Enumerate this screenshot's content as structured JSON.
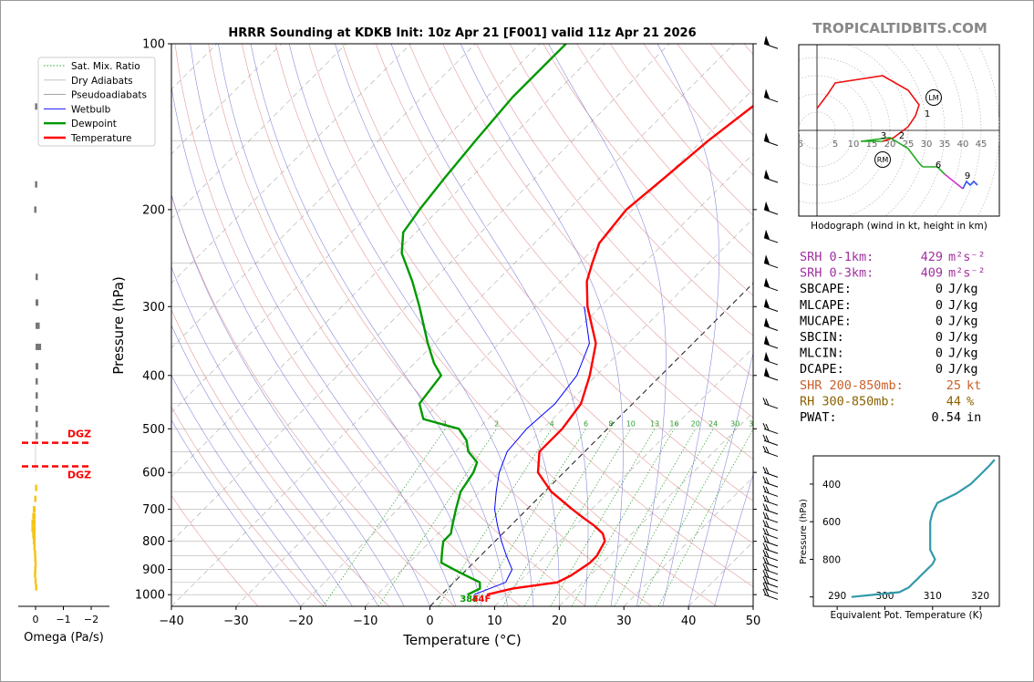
{
  "title": "HRRR Sounding at KDKB Init: 10z Apr 21 [F001] valid 11z Apr 21 2026",
  "brand": "TROPICALTIDBITS.COM",
  "main_plot": {
    "xlabel": "Temperature (°C)",
    "ylabel": "Pressure (hPa)",
    "x_ticks": [
      "−40",
      "−30",
      "−20",
      "−10",
      "0",
      "10",
      "20",
      "30",
      "40",
      "50"
    ],
    "y_ticks": [
      "100",
      "200",
      "300",
      "400",
      "500",
      "600",
      "700",
      "800",
      "900",
      "1000"
    ],
    "xlim": [
      -40,
      50
    ],
    "ylim": [
      1050,
      100
    ],
    "mixing_ratio_labels": [
      "1",
      "2",
      "4",
      "6",
      "8",
      "10",
      "13",
      "16",
      "20",
      "24",
      "30",
      "36"
    ],
    "surface_temp_label": "44F",
    "surface_dewpoint_label": "38F",
    "colors": {
      "temperature": "#ff0000",
      "dewpoint": "#009900",
      "wetbulb": "#0000ff",
      "dgz": "#ff0000"
    }
  },
  "legend": {
    "items": [
      {
        "label": "Sat. Mix. Ratio",
        "color": "#2ca02c",
        "style": "dotted"
      },
      {
        "label": "Dry Adiabats",
        "color": "#bbbbbb",
        "style": "solid"
      },
      {
        "label": "Pseudoadiabats",
        "color": "#999999",
        "style": "solid"
      },
      {
        "label": "Wetbulb",
        "color": "#0000ff",
        "style": "solid"
      },
      {
        "label": "Dewpoint",
        "color": "#009900",
        "style": "solid"
      },
      {
        "label": "Temperature",
        "color": "#ff0000",
        "style": "solid"
      }
    ]
  },
  "omega_panel": {
    "xlabel": "Omega (Pa/s)",
    "x_ticks": [
      "0",
      "−1",
      "−2"
    ],
    "dgz_top_label": "DGZ",
    "dgz_bottom_label": "DGZ"
  },
  "hodograph": {
    "caption": "Hodograph (wind in kt, height in km)",
    "ring_labels": [
      "5",
      "5",
      "10",
      "15",
      "20",
      "25",
      "30",
      "35",
      "40",
      "45"
    ],
    "height_labels": [
      "1",
      "2",
      "3",
      "6",
      "9"
    ],
    "storm_motion_labels": [
      "LM",
      "RM"
    ]
  },
  "indices": [
    {
      "label": "SRH 0-1km:",
      "value": "429",
      "unit": "m²s⁻²",
      "color": "#a0309f"
    },
    {
      "label": "SRH 0-3km:",
      "value": "409",
      "unit": "m²s⁻²",
      "color": "#a0309f"
    },
    {
      "label": "SBCAPE:",
      "value": "0",
      "unit": "J/kg",
      "color": "#000000"
    },
    {
      "label": "MLCAPE:",
      "value": "0",
      "unit": "J/kg",
      "color": "#000000"
    },
    {
      "label": "MUCAPE:",
      "value": "0",
      "unit": "J/kg",
      "color": "#000000"
    },
    {
      "label": "SBCIN:",
      "value": "0",
      "unit": "J/kg",
      "color": "#000000"
    },
    {
      "label": "MLCIN:",
      "value": "0",
      "unit": "J/kg",
      "color": "#000000"
    },
    {
      "label": "DCAPE:",
      "value": "0",
      "unit": "J/kg",
      "color": "#000000"
    },
    {
      "label": "SHR 200-850mb:",
      "value": "25",
      "unit": "kt",
      "color": "#c8602a"
    },
    {
      "label": "RH 300-850mb:",
      "value": "44",
      "unit": "%",
      "color": "#8a6200"
    },
    {
      "label": "PWAT:",
      "value": "0.54",
      "unit": "in",
      "color": "#000000"
    }
  ],
  "theta_e_panel": {
    "xlabel": "Equivalent Pot. Temperature (K)",
    "ylabel": "Pressure (hPa)",
    "x_ticks": [
      "290",
      "300",
      "310",
      "320"
    ],
    "y_ticks": [
      "400",
      "600",
      "800"
    ],
    "color": "#3399aa"
  },
  "chart_data": [
    {
      "type": "line",
      "title": "HRRR Sounding at KDKB Init: 10z Apr 21 [F001] valid 11z Apr 21 2026",
      "xlabel": "Temperature (°C)",
      "ylabel": "Pressure (hPa)",
      "xlim": [
        -40,
        50
      ],
      "ylim": [
        1050,
        100
      ],
      "y_scale": "log",
      "grid": true,
      "legend_position": "top-left",
      "series": [
        {
          "name": "Temperature",
          "points": [
            [
              1000,
              7
            ],
            [
              975,
              10
            ],
            [
              950,
              16
            ],
            [
              925,
              17
            ],
            [
              900,
              17.5
            ],
            [
              875,
              18
            ],
            [
              850,
              18
            ],
            [
              825,
              17.5
            ],
            [
              800,
              17
            ],
            [
              775,
              15.5
            ],
            [
              750,
              13
            ],
            [
              725,
              10
            ],
            [
              700,
              7
            ],
            [
              650,
              1
            ],
            [
              600,
              -4
            ],
            [
              550,
              -7
            ],
            [
              500,
              -7
            ],
            [
              450,
              -8
            ],
            [
              400,
              -11
            ],
            [
              350,
              -15
            ],
            [
              300,
              -22
            ],
            [
              270,
              -26
            ],
            [
              250,
              -28
            ],
            [
              230,
              -30
            ],
            [
              200,
              -31
            ],
            [
              175,
              -30
            ],
            [
              150,
              -29
            ],
            [
              125,
              -27
            ],
            [
              110,
              -25
            ],
            [
              100,
              -24
            ]
          ]
        },
        {
          "name": "Dewpoint",
          "points": [
            [
              1000,
              4
            ],
            [
              975,
              5
            ],
            [
              950,
              4
            ],
            [
              925,
              1
            ],
            [
              900,
              -2
            ],
            [
              875,
              -5
            ],
            [
              850,
              -6
            ],
            [
              825,
              -7
            ],
            [
              800,
              -8
            ],
            [
              775,
              -8
            ],
            [
              750,
              -9
            ],
            [
              700,
              -11
            ],
            [
              650,
              -13
            ],
            [
              600,
              -14
            ],
            [
              575,
              -15
            ],
            [
              550,
              -18
            ],
            [
              525,
              -20
            ],
            [
              500,
              -23
            ],
            [
              480,
              -30
            ],
            [
              450,
              -33
            ],
            [
              400,
              -34
            ],
            [
              380,
              -37
            ],
            [
              350,
              -41
            ],
            [
              300,
              -48
            ],
            [
              270,
              -53
            ],
            [
              240,
              -59
            ],
            [
              220,
              -62
            ],
            [
              200,
              -63
            ],
            [
              175,
              -64
            ],
            [
              150,
              -65
            ],
            [
              125,
              -66
            ],
            [
              100,
              -66
            ]
          ]
        },
        {
          "name": "Wetbulb",
          "points": [
            [
              1000,
              5
            ],
            [
              950,
              8
            ],
            [
              900,
              7
            ],
            [
              850,
              4
            ],
            [
              800,
              1
            ],
            [
              750,
              -2
            ],
            [
              700,
              -5
            ],
            [
              650,
              -7.5
            ],
            [
              600,
              -10
            ],
            [
              550,
              -12
            ],
            [
              500,
              -12.5
            ],
            [
              450,
              -12
            ],
            [
              400,
              -13
            ],
            [
              350,
              -16
            ],
            [
              300,
              -22.5
            ]
          ]
        }
      ]
    },
    {
      "type": "bar",
      "title": "",
      "xlabel": "Omega (Pa/s)",
      "xlim": [
        0.5,
        -2
      ],
      "orientation": "horizontal",
      "series": [
        {
          "name": "Omega (upper)",
          "color": "#777777",
          "points": [
            [
              130,
              0.02
            ],
            [
              180,
              0.02
            ],
            [
              200,
              0.05
            ],
            [
              265,
              -0.05
            ],
            [
              295,
              -0.1
            ],
            [
              325,
              -0.15
            ],
            [
              355,
              -0.2
            ],
            [
              385,
              -0.1
            ],
            [
              410,
              -0.08
            ],
            [
              435,
              -0.06
            ],
            [
              460,
              -0.05
            ],
            [
              490,
              -0.03
            ],
            [
              515,
              -0.02
            ]
          ]
        },
        {
          "name": "Omega (lower)",
          "color": "#f5c518",
          "points": [
            [
              640,
              0.02
            ],
            [
              670,
              0.05
            ],
            [
              700,
              0.1
            ],
            [
              720,
              0.12
            ],
            [
              740,
              0.15
            ],
            [
              760,
              0.15
            ],
            [
              780,
              0.12
            ],
            [
              800,
              0.1
            ],
            [
              820,
              0.08
            ],
            [
              840,
              0.06
            ],
            [
              860,
              0.05
            ],
            [
              880,
              0.04
            ],
            [
              900,
              0.05
            ],
            [
              920,
              0.06
            ],
            [
              945,
              0.04
            ],
            [
              970,
              0.02
            ]
          ]
        }
      ],
      "annotations": [
        {
          "label": "DGZ",
          "pressure": 530
        },
        {
          "label": "DGZ",
          "pressure": 585
        }
      ]
    },
    {
      "type": "line",
      "title": "Hodograph (wind in kt, height in km)",
      "xlim": [
        -5,
        50
      ],
      "ylim": [
        -20,
        20
      ],
      "series": [
        {
          "name": "0-1 km",
          "color": "#ee1111",
          "points": [
            [
              0,
              6
            ],
            [
              3,
              10
            ],
            [
              5,
              13
            ],
            [
              18,
              15
            ],
            [
              25,
              11
            ],
            [
              28,
              7
            ],
            [
              27,
              4
            ],
            [
              25,
              1
            ],
            [
              21,
              -2
            ],
            [
              18,
              -3
            ]
          ]
        },
        {
          "name": "1-3 km",
          "color": "#22aa22",
          "points": [
            [
              18,
              -3
            ],
            [
              15,
              -3
            ],
            [
              12,
              -3
            ],
            [
              20,
              -2
            ],
            [
              25,
              -5
            ],
            [
              28,
              -9
            ],
            [
              29,
              -10
            ]
          ]
        },
        {
          "name": "3-6 km",
          "color": "#22aa22",
          "points": [
            [
              29,
              -10
            ],
            [
              33,
              -10
            ],
            [
              35,
              -12
            ]
          ]
        },
        {
          "name": "6-9 km",
          "color": "#cc33cc",
          "points": [
            [
              35,
              -12
            ],
            [
              40,
              -16
            ]
          ]
        },
        {
          "name": "9+ km",
          "color": "#3355ee",
          "points": [
            [
              40,
              -16
            ],
            [
              41,
              -14
            ],
            [
              42,
              -15
            ],
            [
              43,
              -14
            ],
            [
              44,
              -15
            ]
          ]
        }
      ],
      "markers": [
        {
          "label": "LM",
          "u": 32,
          "v": 9
        },
        {
          "label": "RM",
          "u": 18,
          "v": -8
        },
        {
          "label": "1",
          "u": 30,
          "v": 3
        },
        {
          "label": "2",
          "u": 23,
          "v": -3
        },
        {
          "label": "3",
          "u": 18,
          "v": -3
        },
        {
          "label": "6",
          "u": 33,
          "v": -11
        },
        {
          "label": "9",
          "u": 41,
          "v": -14
        }
      ]
    },
    {
      "type": "line",
      "title": "",
      "xlabel": "Equivalent Pot. Temperature (K)",
      "ylabel": "Pressure (hPa)",
      "xlim": [
        285,
        324
      ],
      "ylim": [
        1050,
        250
      ],
      "series": [
        {
          "name": "Theta-E",
          "color": "#3399aa",
          "points": [
            [
              1000,
              293
            ],
            [
              990,
              297
            ],
            [
              975,
              303
            ],
            [
              950,
              305
            ],
            [
              925,
              306
            ],
            [
              900,
              307
            ],
            [
              875,
              308
            ],
            [
              850,
              309
            ],
            [
              825,
              310
            ],
            [
              800,
              310.5
            ],
            [
              775,
              310
            ],
            [
              750,
              309.5
            ],
            [
              700,
              309.5
            ],
            [
              650,
              309.5
            ],
            [
              600,
              309.5
            ],
            [
              550,
              310
            ],
            [
              500,
              311
            ],
            [
              475,
              313
            ],
            [
              450,
              315
            ],
            [
              400,
              318
            ],
            [
              350,
              320
            ],
            [
              300,
              322
            ],
            [
              270,
              323
            ]
          ]
        }
      ]
    }
  ]
}
